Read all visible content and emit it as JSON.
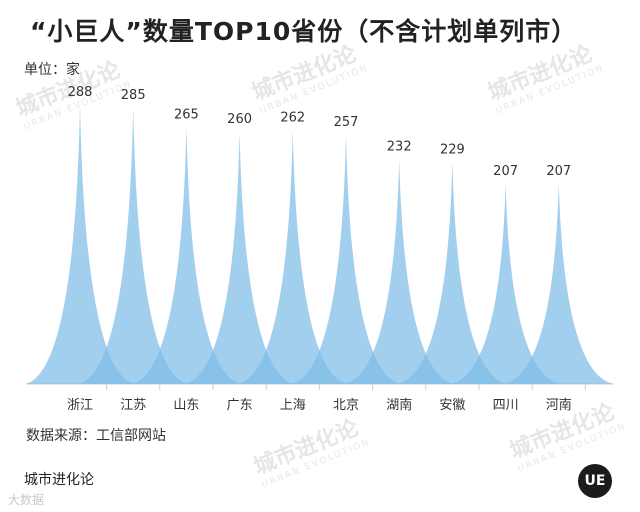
{
  "chart_data": {
    "type": "bar",
    "title": "“小巨人”数量TOP10省份（不含计划单列市）",
    "ylabel": "单位：家",
    "categories": [
      "浙江",
      "江苏",
      "山东",
      "广东",
      "上海",
      "北京",
      "湖南",
      "安徽",
      "四川",
      "河南"
    ],
    "values": [
      288,
      285,
      265,
      260,
      262,
      257,
      232,
      229,
      207,
      207
    ],
    "ylim": [
      0,
      288
    ],
    "grid": false,
    "color": "#7fbde8"
  },
  "source_text": "数据来源：工信部网站",
  "brand_text": "城市进化论",
  "watermark_text": "城市进化论",
  "watermark_sub": "URBAN EVOLUTION",
  "bottom_watermark": "大数据",
  "logo_text": "UE"
}
